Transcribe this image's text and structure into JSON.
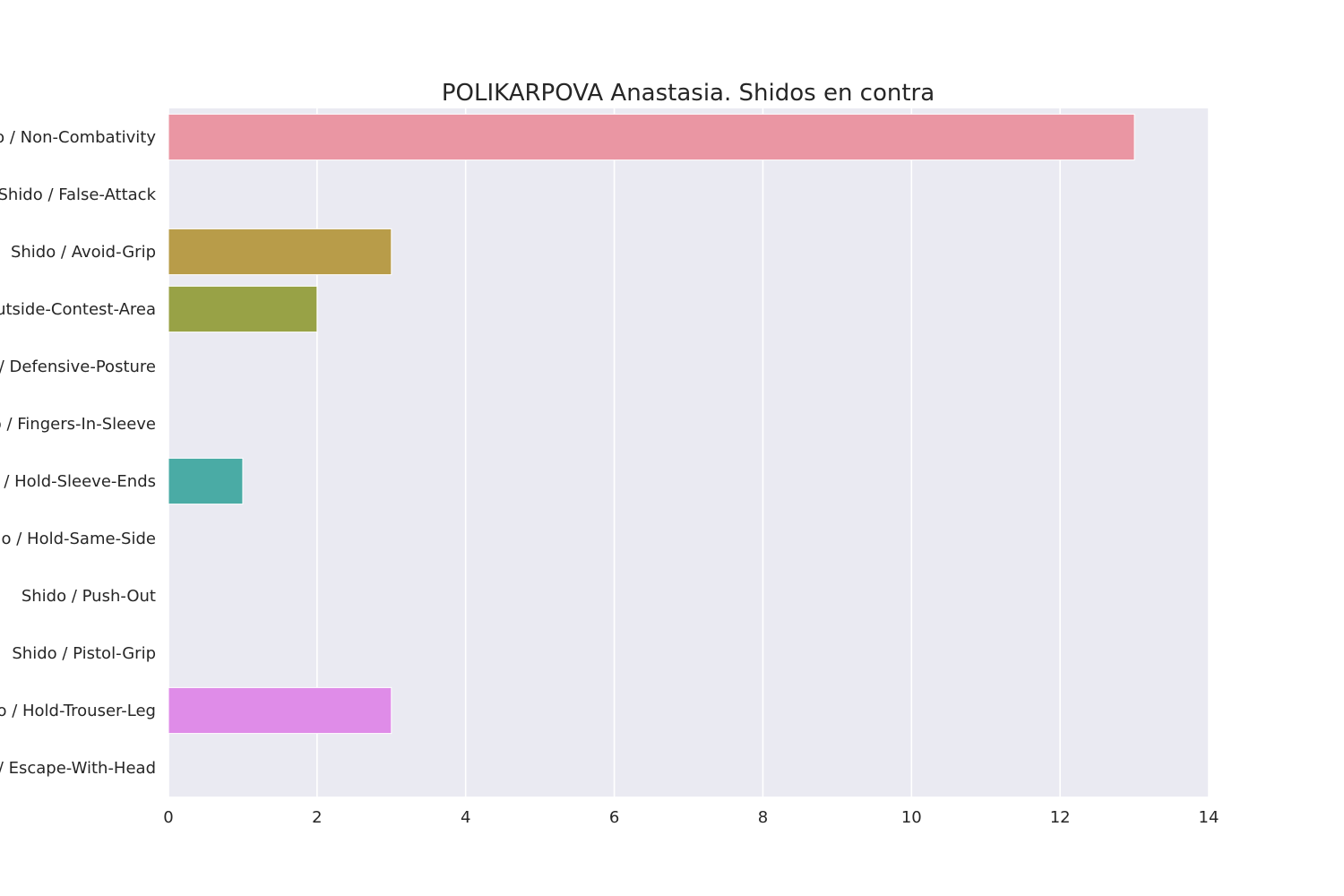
{
  "chart_data": {
    "type": "bar",
    "orientation": "horizontal",
    "title": "POLIKARPOVA Anastasia. Shidos en contra",
    "xlabel": "",
    "ylabel": "",
    "xlim": [
      0,
      14
    ],
    "xticks": [
      0,
      2,
      4,
      6,
      8,
      10,
      12,
      14
    ],
    "grid": true,
    "categories": [
      "Shido / Non-Combativity",
      "Shido / False-Attack",
      "Shido / Avoid-Grip",
      "Shido / Outside-Contest-Area",
      "Shido / Defensive-Posture",
      "Shido / Fingers-In-Sleeve",
      "Shido / Hold-Sleeve-Ends",
      "Shido / Hold-Same-Side",
      "Shido / Push-Out",
      "Shido / Pistol-Grip",
      "Shido / Hold-Trouser-Leg",
      "Shido / Escape-With-Head"
    ],
    "values": [
      13,
      0,
      3,
      2,
      0,
      0,
      1,
      0,
      0,
      0,
      3,
      0
    ],
    "colors": [
      "#ea96a3",
      "#dd9b67",
      "#b89c49",
      "#98a246",
      "#6bad48",
      "#4ead75",
      "#4aaba5",
      "#4daac3",
      "#59a8dc",
      "#a39ee8",
      "#df8ce8",
      "#e893c8"
    ],
    "background": "#eaeaf2",
    "gridcolor": "#ffffff"
  }
}
